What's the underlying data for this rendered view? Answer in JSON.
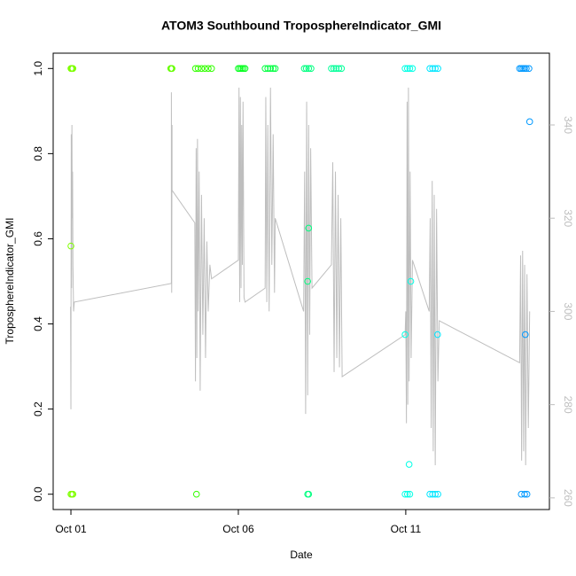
{
  "chart_data": {
    "type": "scatter",
    "title": "ATOM3 Southbound TroposphereIndicator_GMI",
    "xlabel": "Date",
    "ylabel": "TroposphereIndicator_GMI",
    "xlim": [
      0.47,
      15.29
    ],
    "xticks": [
      {
        "value": 1,
        "label": "Oct 01"
      },
      {
        "value": 6,
        "label": "Oct 06"
      },
      {
        "value": 11,
        "label": "Oct 11"
      }
    ],
    "ylim": [
      -0.036,
      1.036
    ],
    "yticks": [
      {
        "value": 0,
        "label": "0.0"
      },
      0.2,
      0.4,
      0.6,
      0.8,
      {
        "value": 1,
        "label": "1.0"
      }
    ],
    "y2lim": [
      257.5,
      355.4
    ],
    "y2ticks": [
      260,
      280,
      300,
      320,
      340
    ],
    "series": [
      {
        "color": "#7fff00",
        "x": [
          1.0,
          1.02,
          1.04,
          1.06,
          1.0,
          1.03,
          1.06,
          1.0
        ],
        "values": [
          1,
          1,
          1,
          1,
          0,
          0,
          0,
          0.583
        ]
      },
      {
        "color": "#66ff00",
        "x": [
          3.98,
          4.0,
          4.02
        ],
        "values": [
          1,
          1,
          1
        ]
      },
      {
        "color": "#33ff00",
        "x": [
          4.72,
          4.8,
          4.9,
          5.0,
          5.1,
          5.2,
          4.75
        ],
        "values": [
          1,
          1,
          1,
          1,
          1,
          1,
          0
        ]
      },
      {
        "color": "#00ff1a",
        "x": [
          6.0,
          6.05,
          6.1,
          6.15,
          6.2
        ],
        "values": [
          1,
          1,
          1,
          1,
          1
        ]
      },
      {
        "color": "#00ff40",
        "x": [
          6.8,
          6.88,
          6.96,
          7.04,
          7.1
        ],
        "values": [
          1,
          1,
          1,
          1,
          1
        ]
      },
      {
        "color": "#00ff80",
        "x": [
          7.97,
          8.03,
          8.1,
          8.17,
          8.1,
          8.07,
          8.07,
          8.1
        ],
        "values": [
          1,
          1,
          1,
          1,
          0.625,
          0.5,
          0,
          0
        ]
      },
      {
        "color": "#00ff99",
        "x": [
          8.78,
          8.85,
          8.92,
          9.0,
          9.08
        ],
        "values": [
          1,
          1,
          1,
          1,
          1
        ]
      },
      {
        "color": "#00ffe6",
        "x": [
          10.98,
          11.05,
          11.12,
          11.2,
          10.98,
          11.1,
          11.15,
          10.98,
          11.05,
          11.12
        ],
        "values": [
          1,
          1,
          1,
          1,
          0.375,
          0.07,
          0.5,
          0,
          0,
          0
        ]
      },
      {
        "color": "#00e6ff",
        "x": [
          11.72,
          11.8,
          11.88,
          11.96,
          11.95,
          11.72,
          11.8,
          11.88,
          11.96
        ],
        "values": [
          1,
          1,
          1,
          1,
          0.375,
          0,
          0,
          0,
          0
        ]
      },
      {
        "color": "#0099ff",
        "x": [
          14.4,
          14.45,
          14.5,
          14.55,
          14.6,
          14.68,
          14.7,
          14.57,
          14.45,
          14.55,
          14.62
        ],
        "values": [
          1,
          1,
          1,
          1,
          1,
          1,
          0.875,
          0.375,
          0,
          0,
          0
        ]
      },
      {
        "type": "line",
        "axis": "y2",
        "color": "#bebebe",
        "x": [
          0.99,
          1.0,
          1.01,
          1.02,
          1.03,
          1.04,
          1.05,
          1.06,
          1.08,
          1.1,
          4.0,
          4.0,
          4.01,
          4.02,
          4.02,
          4.7,
          4.72,
          4.74,
          4.76,
          4.78,
          4.8,
          4.83,
          4.86,
          4.9,
          4.94,
          4.98,
          5.02,
          5.06,
          5.1,
          5.15,
          5.2,
          6.0,
          6.02,
          6.04,
          6.06,
          6.08,
          6.1,
          6.12,
          6.14,
          6.17,
          6.2,
          6.8,
          6.82,
          6.85,
          6.88,
          6.92,
          6.96,
          7.0,
          7.04,
          7.08,
          7.1,
          7.95,
          7.98,
          8.01,
          8.04,
          8.07,
          8.1,
          8.13,
          8.16,
          8.2,
          8.78,
          8.82,
          8.86,
          8.9,
          8.94,
          8.98,
          9.02,
          9.06,
          9.1,
          10.98,
          11.0,
          11.02,
          11.04,
          11.06,
          11.08,
          11.1,
          11.13,
          11.16,
          11.2,
          11.7,
          11.73,
          11.76,
          11.79,
          11.82,
          11.85,
          11.88,
          11.92,
          11.96,
          12.0,
          14.4,
          14.43,
          14.46,
          14.49,
          14.52,
          14.55,
          14.58,
          14.62,
          14.66,
          14.7
        ],
        "values": [
          301,
          279,
          338,
          305,
          340,
          320,
          330,
          310,
          300,
          302,
          306,
          347,
          304,
          340,
          326,
          319,
          285,
          335,
          290,
          337,
          300,
          330,
          283,
          325,
          295,
          320,
          290,
          315,
          300,
          310,
          307,
          311,
          348,
          302,
          346,
          305,
          340,
          310,
          345,
          303,
          302,
          305,
          346,
          302,
          340,
          300,
          348,
          310,
          338,
          304,
          320,
          300,
          330,
          278,
          345,
          282,
          340,
          295,
          335,
          305,
          310,
          332,
          287,
          330,
          290,
          325,
          288,
          320,
          286,
          295,
          300,
          276,
          345,
          280,
          348,
          285,
          330,
          290,
          311,
          300,
          320,
          275,
          328,
          270,
          325,
          267,
          322,
          285,
          298,
          289,
          312,
          268,
          313,
          270,
          310,
          267,
          308,
          275,
          300
        ]
      }
    ]
  }
}
